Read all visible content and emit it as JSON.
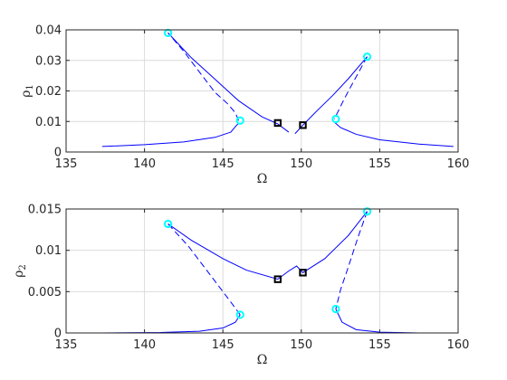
{
  "chart_data": [
    {
      "type": "line",
      "xlabel": "Ω",
      "ylabel_base": "ρ",
      "ylabel_sub": "1",
      "xlim": [
        135,
        160
      ],
      "ylim": [
        0,
        0.04
      ],
      "xticks": [
        135,
        140,
        145,
        150,
        155,
        160
      ],
      "xtick_labels": [
        "135",
        "140",
        "145",
        "150",
        "155",
        "160"
      ],
      "yticks": [
        0,
        0.01,
        0.02,
        0.03,
        0.04
      ],
      "ytick_labels": [
        "0",
        "0.01",
        "0.02",
        "0.03",
        "0.04"
      ],
      "grid": true,
      "series": [
        {
          "style": "solid",
          "points": [
            [
              137.3,
              0.0018
            ],
            [
              140,
              0.0024
            ],
            [
              142.5,
              0.0033
            ],
            [
              144.5,
              0.0048
            ],
            [
              145.5,
              0.0065
            ],
            [
              146.0,
              0.0095
            ]
          ]
        },
        {
          "style": "dashed",
          "points": [
            [
              146.0,
              0.0103
            ],
            [
              145.8,
              0.0128
            ],
            [
              145.3,
              0.0158
            ],
            [
              144.5,
              0.0195
            ],
            [
              143.5,
              0.0262
            ],
            [
              142.5,
              0.033
            ],
            [
              141.5,
              0.039
            ]
          ]
        },
        {
          "style": "solid",
          "points": [
            [
              141.5,
              0.039
            ],
            [
              143.0,
              0.0308
            ],
            [
              144.5,
              0.0238
            ],
            [
              146.0,
              0.0168
            ],
            [
              147.5,
              0.0115
            ],
            [
              148.5,
              0.0092
            ],
            [
              149.2,
              0.0065
            ]
          ]
        },
        {
          "style": "solid",
          "points": [
            [
              149.6,
              0.006
            ],
            [
              150.1,
              0.0088
            ],
            [
              151.0,
              0.0135
            ],
            [
              152.0,
              0.0185
            ],
            [
              153.0,
              0.024
            ],
            [
              154.2,
              0.0312
            ]
          ]
        },
        {
          "style": "dashed",
          "points": [
            [
              154.2,
              0.0312
            ],
            [
              153.7,
              0.0265
            ],
            [
              153.2,
              0.0218
            ],
            [
              152.7,
              0.017
            ],
            [
              152.3,
              0.0128
            ],
            [
              152.1,
              0.0108
            ]
          ]
        },
        {
          "style": "solid",
          "points": [
            [
              152.1,
              0.0098
            ],
            [
              152.5,
              0.008
            ],
            [
              153.5,
              0.0058
            ],
            [
              155,
              0.004
            ],
            [
              157.5,
              0.0026
            ],
            [
              159.7,
              0.0018
            ]
          ]
        }
      ],
      "cyan_markers": [
        [
          141.5,
          0.039
        ],
        [
          146.1,
          0.0103
        ],
        [
          152.2,
          0.0108
        ],
        [
          154.2,
          0.0312
        ]
      ],
      "black_markers": [
        [
          148.5,
          0.0095
        ],
        [
          150.1,
          0.0088
        ]
      ]
    },
    {
      "type": "line",
      "xlabel": "Ω",
      "ylabel_base": "ρ",
      "ylabel_sub": "2",
      "xlim": [
        135,
        160
      ],
      "ylim": [
        0,
        0.015
      ],
      "xticks": [
        135,
        140,
        145,
        150,
        155,
        160
      ],
      "xtick_labels": [
        "135",
        "140",
        "145",
        "150",
        "155",
        "160"
      ],
      "yticks": [
        0,
        0.005,
        0.01,
        0.015
      ],
      "ytick_labels": [
        "0",
        "0.005",
        "0.01",
        "0.015"
      ],
      "grid": true,
      "series": [
        {
          "style": "solid",
          "points": [
            [
              137.3,
              0.0
            ],
            [
              141,
              5e-05
            ],
            [
              143.5,
              0.0002
            ],
            [
              145,
              0.0006
            ],
            [
              145.8,
              0.0013
            ],
            [
              146.1,
              0.0022
            ]
          ]
        },
        {
          "style": "dashed",
          "points": [
            [
              146.1,
              0.0022
            ],
            [
              145.6,
              0.0035
            ],
            [
              144.8,
              0.0055
            ],
            [
              143.8,
              0.008
            ],
            [
              142.8,
              0.0105
            ],
            [
              141.5,
              0.0132
            ]
          ]
        },
        {
          "style": "solid",
          "points": [
            [
              141.5,
              0.0132
            ],
            [
              143.0,
              0.0112
            ],
            [
              145.0,
              0.009
            ],
            [
              146.5,
              0.0076
            ],
            [
              148.5,
              0.0065
            ],
            [
              149.2,
              0.0075
            ],
            [
              149.7,
              0.0081
            ],
            [
              150.1,
              0.0073
            ],
            [
              151.5,
              0.009
            ],
            [
              153.0,
              0.0118
            ],
            [
              154.2,
              0.0147
            ]
          ]
        },
        {
          "style": "dashed",
          "points": [
            [
              154.2,
              0.0147
            ],
            [
              153.6,
              0.0115
            ],
            [
              153.0,
              0.008
            ],
            [
              152.5,
              0.0052
            ],
            [
              152.2,
              0.0029
            ]
          ]
        },
        {
          "style": "solid",
          "points": [
            [
              152.2,
              0.0029
            ],
            [
              152.6,
              0.0013
            ],
            [
              153.5,
              0.0004
            ],
            [
              155,
              0.0001
            ],
            [
              157.5,
              0.0
            ],
            [
              159.7,
              0.0
            ]
          ]
        }
      ],
      "cyan_markers": [
        [
          141.5,
          0.0132
        ],
        [
          146.1,
          0.0022
        ],
        [
          152.2,
          0.0029
        ],
        [
          154.2,
          0.0147
        ]
      ],
      "black_markers": [
        [
          148.5,
          0.0065
        ],
        [
          150.1,
          0.0073
        ]
      ]
    }
  ],
  "colors": {
    "line": "#0000ff",
    "open_circle": "#00ffff",
    "square": "#000000",
    "grid": "#dcdcdc"
  }
}
